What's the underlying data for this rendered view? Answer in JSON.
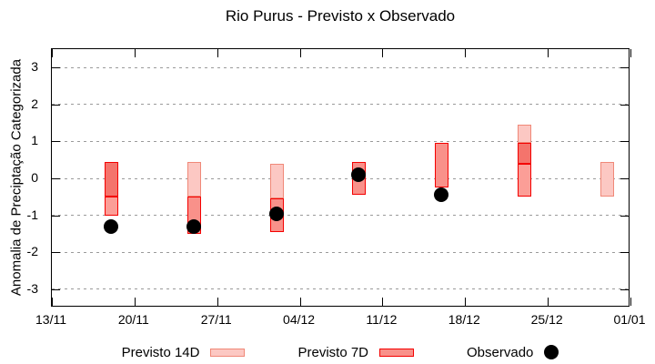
{
  "title": "Rio Purus - Previsto x Observado",
  "y_axis": {
    "label": "Anomalia de Preciptação Categorizada",
    "ticks": [
      3,
      2,
      1,
      0,
      -1,
      -2,
      -3
    ],
    "min": -3.5,
    "max": 3.5
  },
  "x_axis": {
    "tick_labels": [
      "13/11",
      "20/11",
      "27/11",
      "04/12",
      "11/12",
      "18/12",
      "25/12",
      "01/01"
    ],
    "tick_interval_days": 7,
    "span_days": 49
  },
  "legend": {
    "items": [
      {
        "label": "Previsto 14D",
        "swatch": "p14"
      },
      {
        "label": "Previsto 7D",
        "swatch": "p7"
      },
      {
        "label": "Observado",
        "swatch": "dot"
      }
    ],
    "position": "below"
  },
  "colors": {
    "p14": "#fcc8c3",
    "p7": "#f9918a",
    "overlap": "#f4746c",
    "mid": "#fb9e97",
    "border_light": "#f08878",
    "border_red": "#f40000",
    "observado": "#000000",
    "grid": "#9a9a9a",
    "axis": "#000000"
  },
  "chart_data": {
    "type": "bar",
    "subtype": "floating-range-bars-with-observed-points",
    "title": "Rio Purus - Previsto x Observado",
    "ylabel": "Anomalia de Preciptação Categorizada",
    "ylim": [
      -3.5,
      3.5
    ],
    "grid": "dotted-horizontal",
    "legend_position": "below",
    "bar_dates": [
      "18/11",
      "25/11",
      "02/12",
      "09/12",
      "16/12",
      "23/12",
      "30/12"
    ],
    "bars": [
      {
        "date": "18/11",
        "day": 5,
        "segments": [
          {
            "from": 0.45,
            "to": -0.5,
            "fill": "overlap",
            "border": "border_red"
          },
          {
            "from": -0.5,
            "to": -1.0,
            "fill": "mid",
            "border": "border_red"
          }
        ]
      },
      {
        "date": "25/11",
        "day": 12,
        "segments": [
          {
            "from": 0.45,
            "to": -0.5,
            "fill": "p14",
            "border": "border_light"
          },
          {
            "from": -0.5,
            "to": -1.5,
            "fill": "p7",
            "border": "border_red"
          }
        ]
      },
      {
        "date": "02/12",
        "day": 19,
        "segments": [
          {
            "from": 0.4,
            "to": -0.55,
            "fill": "p14",
            "border": "border_light"
          },
          {
            "from": -0.55,
            "to": -1.45,
            "fill": "p7",
            "border": "border_red"
          }
        ]
      },
      {
        "date": "09/12",
        "day": 26,
        "segments": [
          {
            "from": 0.45,
            "to": -0.45,
            "fill": "p7",
            "border": "border_red"
          }
        ]
      },
      {
        "date": "16/12",
        "day": 33,
        "segments": [
          {
            "from": 0.95,
            "to": -0.25,
            "fill": "p7",
            "border": "border_red"
          }
        ]
      },
      {
        "date": "23/12",
        "day": 40,
        "segments": [
          {
            "from": 1.45,
            "to": 0.95,
            "fill": "p14",
            "border": "border_light"
          },
          {
            "from": 0.95,
            "to": 0.4,
            "fill": "overlap",
            "border": "border_red"
          },
          {
            "from": 0.4,
            "to": -0.5,
            "fill": "mid",
            "border": "border_red"
          }
        ]
      },
      {
        "date": "30/12",
        "day": 47,
        "segments": [
          {
            "from": 0.45,
            "to": -0.5,
            "fill": "p14",
            "border": "border_light"
          }
        ]
      }
    ],
    "observado": [
      {
        "date": "18/11",
        "day": 5,
        "value": -1.3
      },
      {
        "date": "25/11",
        "day": 12,
        "value": -1.3
      },
      {
        "date": "02/12",
        "day": 19,
        "value": -0.95
      },
      {
        "date": "09/12",
        "day": 26,
        "value": 0.1
      },
      {
        "date": "16/12",
        "day": 33,
        "value": -0.45
      }
    ]
  }
}
